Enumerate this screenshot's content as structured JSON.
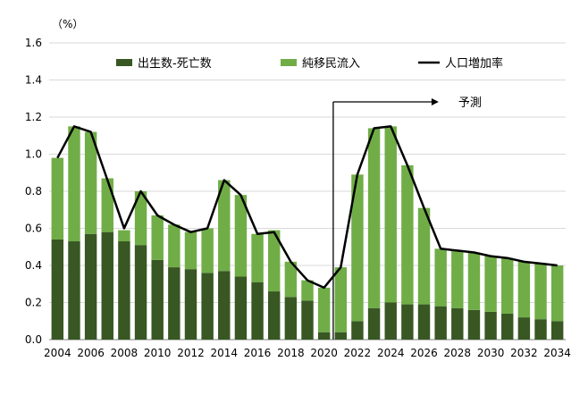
{
  "chart_data": {
    "type": "bar",
    "stacked": true,
    "unit_label": "（%）",
    "categories": [
      "2004",
      "2005",
      "2006",
      "2007",
      "2008",
      "2009",
      "2010",
      "2011",
      "2012",
      "2013",
      "2014",
      "2015",
      "2016",
      "2017",
      "2018",
      "2019",
      "2020",
      "2021",
      "2022",
      "2023",
      "2024",
      "2025",
      "2026",
      "2027",
      "2028",
      "2029",
      "2030",
      "2031",
      "2032",
      "2033",
      "2034"
    ],
    "x_tick_labels": [
      "2004",
      "",
      "2006",
      "",
      "2008",
      "",
      "2010",
      "",
      "2012",
      "",
      "2014",
      "",
      "2016",
      "",
      "2018",
      "",
      "2020",
      "",
      "2022",
      "",
      "2024",
      "",
      "2026",
      "",
      "2028",
      "",
      "2030",
      "",
      "2032",
      "",
      "2034"
    ],
    "series": [
      {
        "name": "出生数-死亡数",
        "kind": "bar",
        "color": "#385723",
        "values": [
          0.54,
          0.53,
          0.57,
          0.58,
          0.53,
          0.51,
          0.43,
          0.39,
          0.38,
          0.36,
          0.37,
          0.34,
          0.31,
          0.26,
          0.23,
          0.21,
          0.04,
          0.04,
          0.1,
          0.17,
          0.2,
          0.19,
          0.19,
          0.18,
          0.17,
          0.16,
          0.15,
          0.14,
          0.12,
          0.11,
          0.1
        ]
      },
      {
        "name": "純移民流入",
        "kind": "bar",
        "color": "#70ad47",
        "values": [
          0.44,
          0.62,
          0.55,
          0.29,
          0.06,
          0.29,
          0.24,
          0.23,
          0.2,
          0.24,
          0.49,
          0.44,
          0.26,
          0.33,
          0.19,
          0.11,
          0.24,
          0.35,
          0.79,
          0.97,
          0.95,
          0.75,
          0.52,
          0.31,
          0.31,
          0.31,
          0.3,
          0.3,
          0.3,
          0.3,
          0.3
        ]
      },
      {
        "name": "人口増加率",
        "kind": "line",
        "color": "#000000",
        "values": [
          0.98,
          1.15,
          1.12,
          0.86,
          0.6,
          0.8,
          0.67,
          0.62,
          0.58,
          0.6,
          0.86,
          0.78,
          0.57,
          0.58,
          0.42,
          0.32,
          0.28,
          0.39,
          0.89,
          1.14,
          1.15,
          0.94,
          0.71,
          0.49,
          0.48,
          0.47,
          0.45,
          0.44,
          0.42,
          0.41,
          0.4
        ]
      }
    ],
    "y_ticks": [
      "0.0",
      "0.2",
      "0.4",
      "0.6",
      "0.8",
      "1.0",
      "1.2",
      "1.4",
      "1.6"
    ],
    "ylim": [
      0,
      1.6
    ],
    "grid": true,
    "legend_position": "top",
    "annotation": {
      "text": "予測",
      "start_category": "2020"
    }
  }
}
